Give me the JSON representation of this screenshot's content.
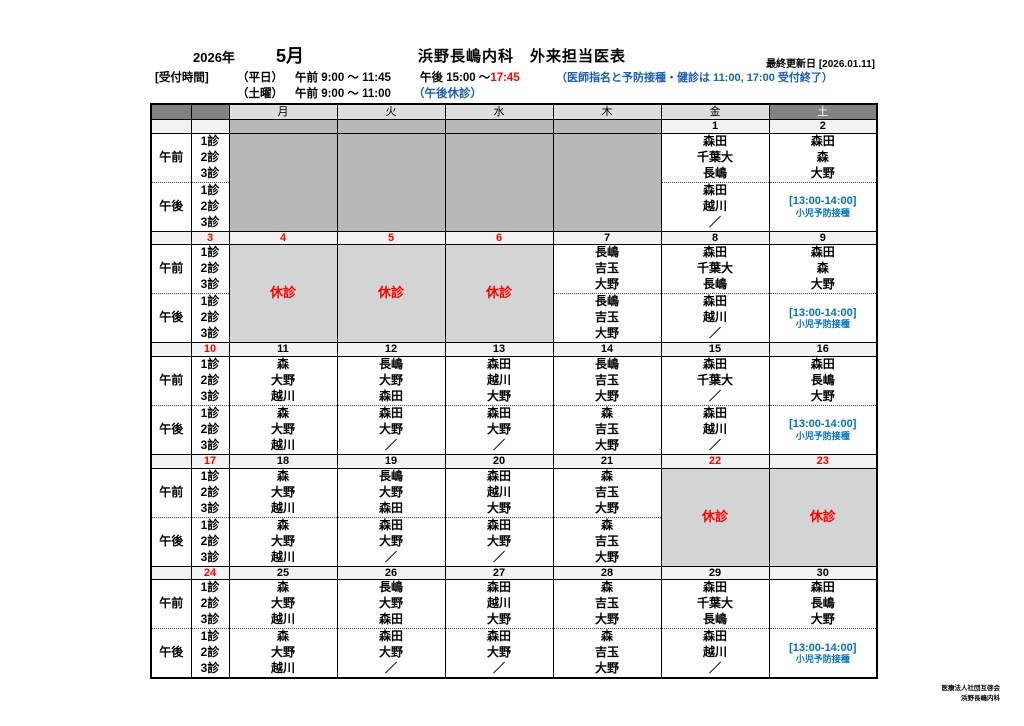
{
  "header": {
    "year": "2026年",
    "month": "5月",
    "title": "浜野長嶋内科　外来担当医表",
    "last_updated": "最終更新日 [2026.01.11]",
    "reception_label": "[受付時間]",
    "weekday_label": "（平日）",
    "weekday_am": "午前 9:00 ～ 11:45",
    "weekday_pm_prefix": "午後 15:00 ～",
    "weekday_pm_end": "17:45",
    "weekday_note": "（医師指名と予防接種・健診は 11:00, 17:00 受付終了）",
    "saturday_label": "（土曜）",
    "saturday_am": "午前 9:00 ～ 11:00",
    "saturday_note": "（午後休診）"
  },
  "table": {
    "day_headers": [
      "月",
      "火",
      "水",
      "木",
      "金",
      "土"
    ],
    "session_labels": {
      "am": "午前",
      "pm": "午後"
    },
    "slot_labels": [
      "1診",
      "2診",
      "3診"
    ],
    "closed_label": "休診",
    "vaccine": {
      "time": "[13:00-14:00]",
      "label": "小児予防接種"
    },
    "weeks": [
      {
        "sunday": {
          "date": "",
          "red": false
        },
        "days": [
          {
            "date": "",
            "red": false,
            "type": "blocked"
          },
          {
            "date": "",
            "red": false,
            "type": "blocked"
          },
          {
            "date": "",
            "red": false,
            "type": "blocked"
          },
          {
            "date": "",
            "red": false,
            "type": "blocked"
          },
          {
            "date": "1",
            "red": false,
            "type": "normal",
            "am": [
              "森田",
              "千葉大",
              "長嶋"
            ],
            "pm": [
              "森田",
              "越川",
              "／"
            ]
          },
          {
            "date": "2",
            "red": false,
            "type": "vaccine",
            "am": [
              "森田",
              "森",
              "大野"
            ]
          }
        ]
      },
      {
        "sunday": {
          "date": "3",
          "red": true
        },
        "days": [
          {
            "date": "4",
            "red": true,
            "type": "closed"
          },
          {
            "date": "5",
            "red": true,
            "type": "closed"
          },
          {
            "date": "6",
            "red": true,
            "type": "closed"
          },
          {
            "date": "7",
            "red": false,
            "type": "normal",
            "am": [
              "長嶋",
              "吉玉",
              "大野"
            ],
            "pm": [
              "長嶋",
              "吉玉",
              "大野"
            ]
          },
          {
            "date": "8",
            "red": false,
            "type": "normal",
            "am": [
              "森田",
              "千葉大",
              "長嶋"
            ],
            "pm": [
              "森田",
              "越川",
              "／"
            ]
          },
          {
            "date": "9",
            "red": false,
            "type": "vaccine",
            "am": [
              "森田",
              "森",
              "大野"
            ]
          }
        ]
      },
      {
        "sunday": {
          "date": "10",
          "red": true
        },
        "days": [
          {
            "date": "11",
            "red": false,
            "type": "normal",
            "am": [
              "森",
              "大野",
              "越川"
            ],
            "pm": [
              "森",
              "大野",
              "越川"
            ]
          },
          {
            "date": "12",
            "red": false,
            "type": "normal",
            "am": [
              "長嶋",
              "大野",
              "森田"
            ],
            "pm": [
              "森田",
              "大野",
              "／"
            ]
          },
          {
            "date": "13",
            "red": false,
            "type": "normal",
            "am": [
              "森田",
              "越川",
              "大野"
            ],
            "pm": [
              "森田",
              "大野",
              "／"
            ]
          },
          {
            "date": "14",
            "red": false,
            "type": "normal",
            "am": [
              "長嶋",
              "吉玉",
              "大野"
            ],
            "pm": [
              "森",
              "吉玉",
              "大野"
            ]
          },
          {
            "date": "15",
            "red": false,
            "type": "normal",
            "am": [
              "森田",
              "千葉大",
              "／"
            ],
            "pm": [
              "森田",
              "越川",
              "／"
            ]
          },
          {
            "date": "16",
            "red": false,
            "type": "vaccine",
            "am": [
              "森田",
              "長嶋",
              "大野"
            ]
          }
        ]
      },
      {
        "sunday": {
          "date": "17",
          "red": true
        },
        "days": [
          {
            "date": "18",
            "red": false,
            "type": "normal",
            "am": [
              "森",
              "大野",
              "越川"
            ],
            "pm": [
              "森",
              "大野",
              "越川"
            ]
          },
          {
            "date": "19",
            "red": false,
            "type": "normal",
            "am": [
              "長嶋",
              "大野",
              "森田"
            ],
            "pm": [
              "森田",
              "大野",
              "／"
            ]
          },
          {
            "date": "20",
            "red": false,
            "type": "normal",
            "am": [
              "森田",
              "越川",
              "大野"
            ],
            "pm": [
              "森田",
              "大野",
              "／"
            ]
          },
          {
            "date": "21",
            "red": false,
            "type": "normal",
            "am": [
              "森",
              "吉玉",
              "大野"
            ],
            "pm": [
              "森",
              "吉玉",
              "大野"
            ]
          },
          {
            "date": "22",
            "red": true,
            "type": "closed"
          },
          {
            "date": "23",
            "red": true,
            "type": "closed"
          }
        ]
      },
      {
        "sunday": {
          "date": "24",
          "red": true
        },
        "days": [
          {
            "date": "25",
            "red": false,
            "type": "normal",
            "am": [
              "森",
              "大野",
              "越川"
            ],
            "pm": [
              "森",
              "大野",
              "越川"
            ]
          },
          {
            "date": "26",
            "red": false,
            "type": "normal",
            "am": [
              "長嶋",
              "大野",
              "森田"
            ],
            "pm": [
              "森田",
              "大野",
              "／"
            ]
          },
          {
            "date": "27",
            "red": false,
            "type": "normal",
            "am": [
              "森田",
              "越川",
              "大野"
            ],
            "pm": [
              "森田",
              "大野",
              "／"
            ]
          },
          {
            "date": "28",
            "red": false,
            "type": "normal",
            "am": [
              "森",
              "吉玉",
              "大野"
            ],
            "pm": [
              "森",
              "吉玉",
              "大野"
            ]
          },
          {
            "date": "29",
            "red": false,
            "type": "normal",
            "am": [
              "森田",
              "千葉大",
              "長嶋"
            ],
            "pm": [
              "森田",
              "越川",
              "／"
            ]
          },
          {
            "date": "30",
            "red": false,
            "type": "vaccine",
            "am": [
              "森田",
              "長嶋",
              "大野"
            ]
          }
        ]
      }
    ]
  },
  "footer": {
    "line1": "医療法人社団互啓会",
    "line2": "浜野長嶋内科"
  },
  "colors": {
    "holiday_red": "#ff0000",
    "note_blue": "#1a5fb4",
    "vaccine_blue": "#0070c0",
    "closed_bg": "#d4d4d4",
    "blocked_bg": "#b8b8b8",
    "saturday_header_bg": "#828282"
  }
}
